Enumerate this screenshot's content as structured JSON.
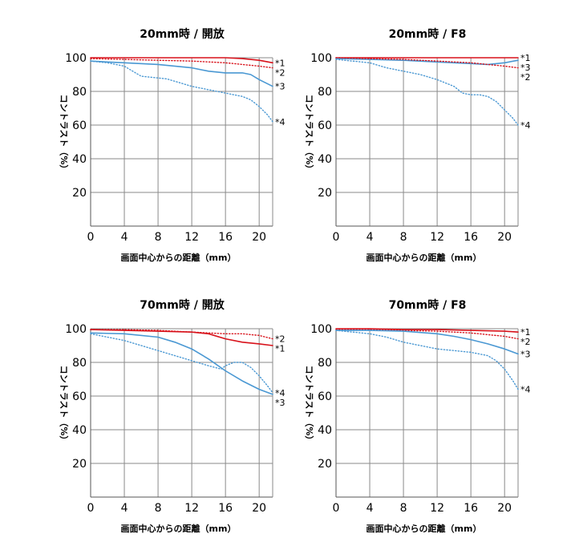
{
  "colors": {
    "mtf30": "#d8121b",
    "mtf10": "#4a98d3",
    "grid": "#8a8a8a",
    "frame": "#555555"
  },
  "chart_data": [
    {
      "type": "line",
      "title": "20mm時 / 開放",
      "xlabel": "画面中心からの距離（mm）",
      "ylabel": "コントラスト（%）",
      "xlim": [
        0,
        21.6
      ],
      "ylim": [
        0,
        100
      ],
      "xticks": [
        "0",
        "4",
        "8",
        "12",
        "16",
        "20"
      ],
      "yticks": [
        "20",
        "40",
        "60",
        "80",
        "100"
      ],
      "grid": true,
      "series": [
        {
          "name": "*1",
          "color": "#d8121b",
          "style": "solid",
          "x": [
            0,
            4,
            8,
            12,
            16,
            18,
            20,
            21.6
          ],
          "y": [
            100,
            100,
            100,
            100,
            100,
            99.5,
            98.5,
            97
          ]
        },
        {
          "name": "*2",
          "color": "#d8121b",
          "style": "dotted",
          "x": [
            0,
            4,
            8,
            12,
            16,
            18,
            20,
            21.6
          ],
          "y": [
            99.5,
            99,
            98.5,
            98,
            97,
            96,
            95,
            94
          ]
        },
        {
          "name": "*3",
          "color": "#4a98d3",
          "style": "solid",
          "x": [
            0,
            2,
            4,
            8,
            12,
            14,
            16,
            17,
            18,
            19,
            20,
            21.6
          ],
          "y": [
            98,
            97.5,
            97,
            96,
            94,
            92,
            91,
            91,
            91,
            90,
            87,
            83
          ]
        },
        {
          "name": "*4",
          "color": "#4a98d3",
          "style": "dotted",
          "x": [
            0,
            2,
            4,
            5,
            6,
            8,
            9,
            10,
            12,
            14,
            16,
            18,
            19,
            20,
            21,
            21.6
          ],
          "y": [
            98,
            97,
            95,
            92,
            89,
            88,
            87.5,
            86,
            83,
            81,
            79,
            77,
            75,
            71,
            66,
            62
          ]
        }
      ]
    },
    {
      "type": "line",
      "title": "20mm時 / F8",
      "xlabel": "画面中心からの距離（mm）",
      "ylabel": "コントラスト（%）",
      "xlim": [
        0,
        21.6
      ],
      "ylim": [
        0,
        100
      ],
      "xticks": [
        "0",
        "4",
        "8",
        "12",
        "16",
        "20"
      ],
      "yticks": [
        "20",
        "40",
        "60",
        "80",
        "100"
      ],
      "grid": true,
      "series": [
        {
          "name": "*1",
          "color": "#d8121b",
          "style": "solid",
          "x": [
            0,
            4,
            8,
            12,
            16,
            20,
            21.6
          ],
          "y": [
            100,
            100,
            100,
            100,
            100,
            100,
            100
          ]
        },
        {
          "name": "*3",
          "color": "#4a98d3",
          "style": "solid",
          "x": [
            0,
            4,
            8,
            12,
            16,
            18,
            20,
            21.6
          ],
          "y": [
            99.5,
            99,
            98.5,
            97.5,
            96.5,
            96,
            97,
            98.5
          ]
        },
        {
          "name": "*2",
          "color": "#d8121b",
          "style": "dotted",
          "x": [
            0,
            4,
            8,
            12,
            16,
            18,
            20,
            21.6
          ],
          "y": [
            100,
            99.5,
            99,
            98,
            97,
            96,
            95,
            94
          ]
        },
        {
          "name": "*4",
          "color": "#4a98d3",
          "style": "dotted",
          "x": [
            0,
            4,
            6,
            8,
            10,
            12,
            14,
            15,
            16,
            17,
            18,
            19,
            20,
            21,
            21.6
          ],
          "y": [
            99,
            97,
            94,
            92,
            90,
            87,
            83,
            79,
            78,
            78,
            77,
            74,
            69,
            64,
            60
          ]
        }
      ]
    },
    {
      "type": "line",
      "title": "70mm時 / 開放",
      "xlabel": "画面中心からの距離（mm）",
      "ylabel": "コントラスト（%）",
      "xlim": [
        0,
        21.6
      ],
      "ylim": [
        0,
        100
      ],
      "xticks": [
        "0",
        "4",
        "8",
        "12",
        "16",
        "20"
      ],
      "yticks": [
        "20",
        "40",
        "60",
        "80",
        "100"
      ],
      "grid": true,
      "series": [
        {
          "name": "*2",
          "color": "#d8121b",
          "style": "dotted",
          "x": [
            0,
            4,
            8,
            12,
            14,
            16,
            18,
            20,
            21.6
          ],
          "y": [
            99.5,
            99.5,
            99,
            98,
            97.5,
            97,
            97,
            96,
            94
          ]
        },
        {
          "name": "*1",
          "color": "#d8121b",
          "style": "solid",
          "x": [
            0,
            4,
            8,
            12,
            14,
            16,
            18,
            20,
            21.6
          ],
          "y": [
            99.5,
            99,
            98.5,
            98,
            97,
            94,
            92,
            91,
            90
          ]
        },
        {
          "name": "*4",
          "color": "#4a98d3",
          "style": "dotted",
          "x": [
            0,
            2,
            4,
            6,
            8,
            10,
            12,
            14,
            15.5,
            16,
            17,
            18,
            19,
            20,
            21,
            21.6
          ],
          "y": [
            97,
            95,
            93,
            90,
            87,
            84,
            81,
            78,
            76,
            78,
            80,
            80,
            77,
            72,
            66,
            62
          ]
        },
        {
          "name": "*3",
          "color": "#4a98d3",
          "style": "solid",
          "x": [
            0,
            4,
            8,
            10,
            12,
            14,
            16,
            18,
            20,
            21.6
          ],
          "y": [
            97.5,
            97,
            95,
            92,
            88,
            82,
            75,
            69,
            64,
            61
          ]
        }
      ]
    },
    {
      "type": "line",
      "title": "70mm時 / F8",
      "xlabel": "画面中心からの距離（mm）",
      "ylabel": "コントラスト（%）",
      "xlim": [
        0,
        21.6
      ],
      "ylim": [
        0,
        100
      ],
      "xticks": [
        "0",
        "4",
        "8",
        "12",
        "16",
        "20"
      ],
      "yticks": [
        "20",
        "40",
        "60",
        "80",
        "100"
      ],
      "grid": true,
      "series": [
        {
          "name": "*1",
          "color": "#d8121b",
          "style": "solid",
          "x": [
            0,
            4,
            8,
            12,
            16,
            20,
            21.6
          ],
          "y": [
            100,
            100,
            99.5,
            99.5,
            99,
            98.5,
            98
          ]
        },
        {
          "name": "*2",
          "color": "#d8121b",
          "style": "dotted",
          "x": [
            0,
            4,
            8,
            12,
            16,
            18,
            20,
            21.6
          ],
          "y": [
            99.5,
            99.5,
            99,
            98.5,
            97.5,
            96.5,
            95.5,
            94
          ]
        },
        {
          "name": "*3",
          "color": "#4a98d3",
          "style": "solid",
          "x": [
            0,
            4,
            8,
            12,
            14,
            16,
            18,
            20,
            21.6
          ],
          "y": [
            99,
            99,
            98.5,
            97,
            95.5,
            93.5,
            91,
            88,
            85
          ]
        },
        {
          "name": "*4",
          "color": "#4a98d3",
          "style": "dotted",
          "x": [
            0,
            2,
            4,
            6,
            8,
            10,
            12,
            14,
            16,
            17,
            18,
            19,
            20,
            21,
            21.6
          ],
          "y": [
            99,
            98,
            97,
            95,
            92,
            90,
            88,
            87,
            86,
            85,
            84,
            81,
            76,
            69,
            64
          ]
        }
      ]
    }
  ]
}
